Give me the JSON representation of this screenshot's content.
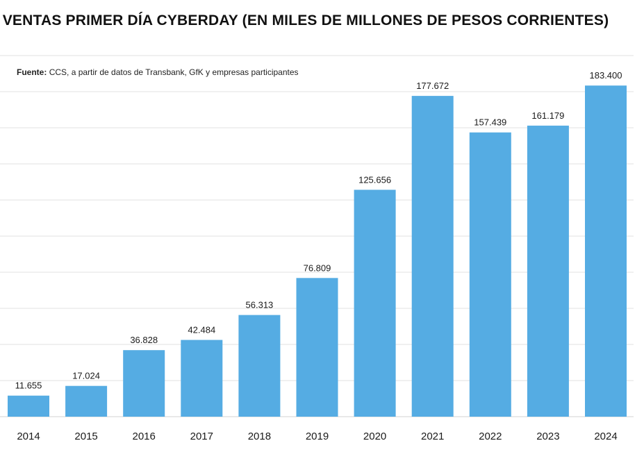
{
  "chart_data": {
    "type": "bar",
    "title": "VENTAS PRIMER DÍA CYBERDAY (EN MILES DE MILLONES DE PESOS CORRIENTES)",
    "source_label": "Fuente:",
    "source_text": "CCS, a partir de datos de Transbank, GfK y empresas participantes",
    "xlabel": "",
    "ylabel": "",
    "ylim": [
      0,
      200
    ],
    "grid": true,
    "bar_color": "#55ace3",
    "grid_color": "#e2e2e2",
    "categories": [
      "2014",
      "2015",
      "2016",
      "2017",
      "2018",
      "2019",
      "2020",
      "2021",
      "2022",
      "2023",
      "2024"
    ],
    "values": [
      11.655,
      17.024,
      36.828,
      42.484,
      56.313,
      76.809,
      125.656,
      177.672,
      157.439,
      161.179,
      183.4
    ],
    "value_labels": [
      "11.655",
      "17.024",
      "36.828",
      "42.484",
      "56.313",
      "76.809",
      "125.656",
      "177.672",
      "157.439",
      "161.179",
      "183.400"
    ]
  }
}
